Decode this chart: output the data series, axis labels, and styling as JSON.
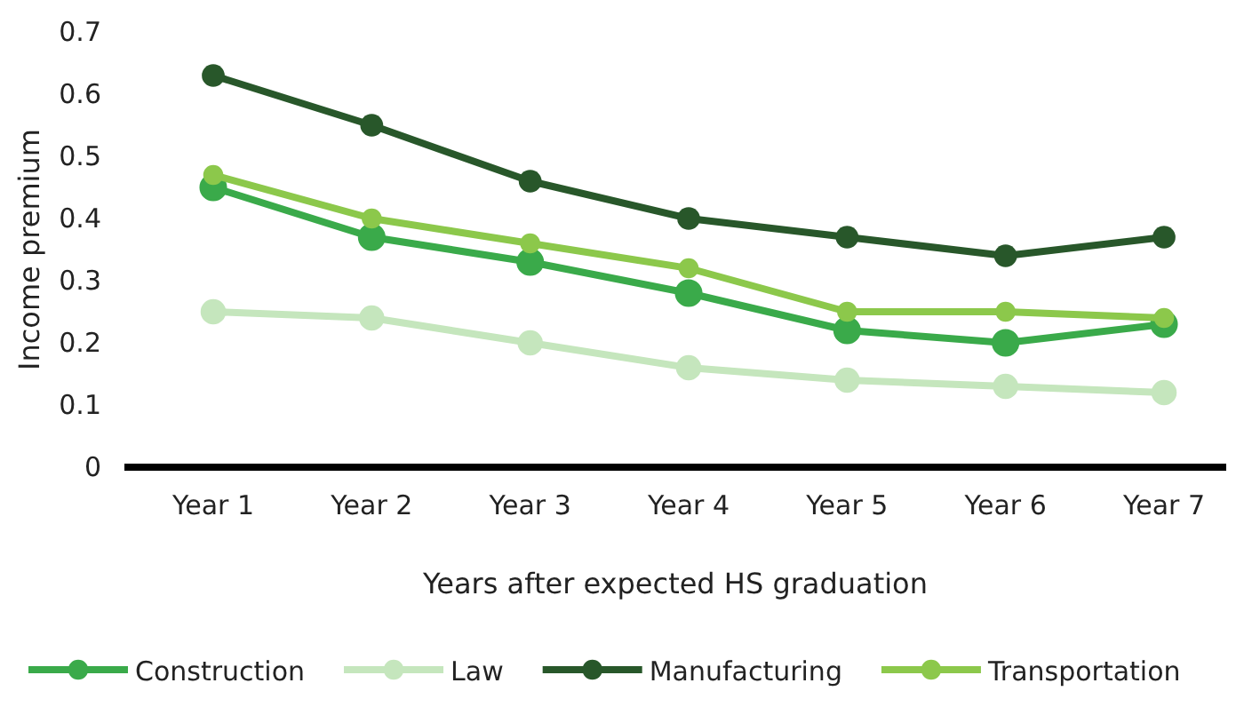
{
  "chart_data": {
    "type": "line",
    "xlabel": "Years after expected HS graduation",
    "ylabel": "Income premium",
    "categories": [
      "Year 1",
      "Year 2",
      "Year 3",
      "Year 4",
      "Year 5",
      "Year 6",
      "Year 7"
    ],
    "ylim": [
      0,
      0.7
    ],
    "yticks": [
      0,
      0.1,
      0.2,
      0.3,
      0.4,
      0.5,
      0.6,
      0.7
    ],
    "legend": "bottom",
    "marker": "circle",
    "series": [
      {
        "name": "Construction",
        "color": "#3aaa4a",
        "values": [
          0.45,
          0.37,
          0.33,
          0.28,
          0.22,
          0.2,
          0.23
        ]
      },
      {
        "name": "Law",
        "color": "#c5e6bd",
        "values": [
          0.25,
          0.24,
          0.2,
          0.16,
          0.14,
          0.13,
          0.12
        ]
      },
      {
        "name": "Manufacturing",
        "color": "#28572a",
        "values": [
          0.63,
          0.55,
          0.46,
          0.4,
          0.37,
          0.34,
          0.37
        ]
      },
      {
        "name": "Transportation",
        "color": "#8cc84b",
        "values": [
          0.47,
          0.4,
          0.36,
          0.32,
          0.25,
          0.25,
          0.24
        ]
      }
    ]
  }
}
